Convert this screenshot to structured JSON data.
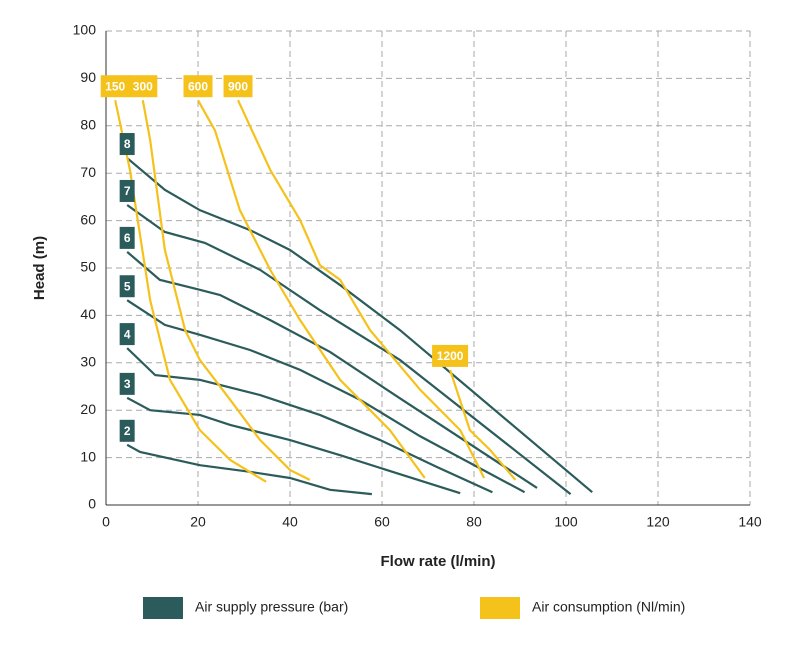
{
  "chart_data": {
    "type": "line",
    "xlabel": "Flow rate (l/min)",
    "ylabel": "Head (m)",
    "xlim": [
      0,
      140
    ],
    "ylim": [
      0,
      100
    ],
    "xticks": [
      0,
      20,
      40,
      60,
      80,
      100,
      120,
      140
    ],
    "yticks": [
      0,
      10,
      20,
      30,
      40,
      50,
      60,
      70,
      80,
      90,
      100
    ],
    "grid": true,
    "legend": [
      {
        "name": "Air supply pressure (bar)",
        "color": "#2b5c5b"
      },
      {
        "name": "Air consumption (Nl/min)",
        "color": "#f5c21b"
      }
    ],
    "series": [
      {
        "name": "2",
        "color": "#2b5c5b",
        "x": [
          4.6,
          7.4,
          20.4,
          31.3,
          40,
          48.7,
          57.8
        ],
        "values": [
          12.7,
          11.2,
          8.4,
          7,
          5.7,
          3.2,
          2.3
        ]
      },
      {
        "name": "3",
        "color": "#2b5c5b",
        "x": [
          4.6,
          9.6,
          20.4,
          27,
          40,
          50.9,
          63.9,
          77
        ],
        "values": [
          22.6,
          20,
          19,
          16.9,
          13.7,
          10.5,
          6.5,
          2.5
        ]
      },
      {
        "name": "4",
        "color": "#2b5c5b",
        "x": [
          4.6,
          10.7,
          20.4,
          33.5,
          46.5,
          59.6,
          72,
          84
        ],
        "values": [
          33.1,
          27.4,
          26.4,
          23.2,
          19,
          13.7,
          8,
          2.7
        ]
      },
      {
        "name": "5",
        "color": "#2b5c5b",
        "x": [
          4.6,
          12.8,
          20.4,
          31.3,
          42.2,
          55.2,
          68.3,
          91
        ],
        "values": [
          43.2,
          38,
          35.9,
          32.7,
          28.5,
          22.2,
          14.5,
          2.7
        ]
      },
      {
        "name": "6",
        "color": "#2b5c5b",
        "x": [
          4.6,
          11.7,
          20.4,
          24.8,
          35.7,
          48.7,
          63.9,
          93.7
        ],
        "values": [
          53.4,
          47.5,
          45.4,
          44.3,
          39,
          32.3,
          22.5,
          3.6
        ]
      },
      {
        "name": "7",
        "color": "#2b5c5b",
        "x": [
          4.6,
          12.8,
          21.5,
          33.5,
          46.5,
          63.9,
          101
        ],
        "values": [
          63.3,
          57.6,
          55.3,
          49.6,
          41.1,
          30.6,
          2.3
        ]
      },
      {
        "name": "8",
        "color": "#2b5c5b",
        "x": [
          4.6,
          12.8,
          20.4,
          31.3,
          40,
          50.9,
          63.9,
          105.7
        ],
        "values": [
          73.2,
          66.5,
          62.2,
          58,
          53.8,
          46.4,
          36.9,
          2.7
        ]
      },
      {
        "name": "150",
        "color": "#f5c21b",
        "x": [
          2,
          5.2,
          9.6,
          13.9,
          20.4,
          27,
          34.8
        ],
        "values": [
          85.4,
          70.7,
          43.2,
          26.4,
          15.8,
          9.5,
          4.9
        ]
      },
      {
        "name": "300",
        "color": "#f5c21b",
        "x": [
          8,
          9.6,
          12.8,
          17.2,
          20.4,
          27,
          33.5,
          40,
          44.3
        ],
        "values": [
          85.4,
          77,
          53.8,
          36.9,
          30.6,
          22.2,
          13.7,
          7.4,
          5.3
        ]
      },
      {
        "name": "600",
        "color": "#f5c21b",
        "x": [
          20,
          23.7,
          29.1,
          35.7,
          42.2,
          50.9,
          61.7,
          69.3
        ],
        "values": [
          85.4,
          79,
          62.2,
          49.6,
          39,
          26.4,
          15.8,
          5.7
        ]
      },
      {
        "name": "900",
        "color": "#f5c21b",
        "x": [
          28.7,
          35.7,
          42.2,
          46.5,
          50.9,
          57.4,
          68.3,
          77,
          82.2
        ],
        "values": [
          85.4,
          70.7,
          60.1,
          50.6,
          47.5,
          36.9,
          24.3,
          15.8,
          5.7
        ]
      },
      {
        "name": "1200",
        "color": "#f5c21b",
        "x": [
          74.8,
          79.1,
          83.5,
          89
        ],
        "values": [
          28.5,
          15.8,
          11.6,
          5.3
        ]
      }
    ]
  }
}
